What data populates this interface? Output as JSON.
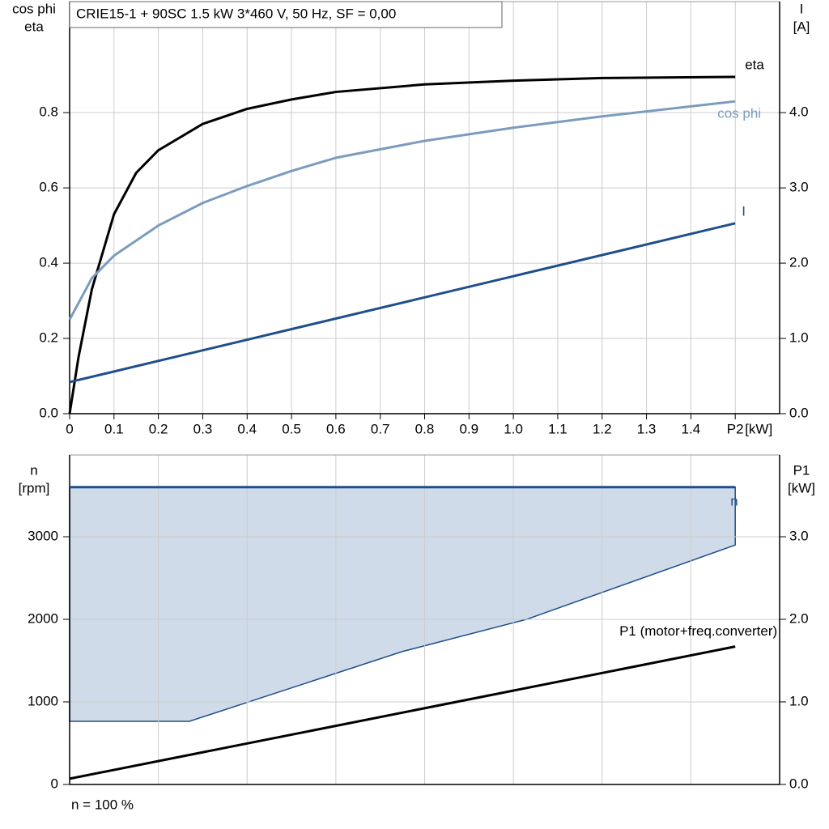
{
  "chart_data": [
    {
      "type": "line",
      "title": "CRIE15-1 + 90SC   1.5 kW   3*460 V, 50 Hz, SF = 0,00",
      "y_label": [
        "cos phi",
        "eta"
      ],
      "y2_label": [
        "I",
        "[A]"
      ],
      "x_label": "[kW]",
      "xlim": [
        0,
        1.6
      ],
      "xticks": [
        {
          "value": 0,
          "label": "0"
        },
        0.1,
        0.2,
        0.3,
        0.4,
        0.5,
        0.6,
        0.7,
        0.8,
        0.9,
        {
          "value": 1.0,
          "label": "1.0"
        },
        1.1,
        1.2,
        1.3,
        1.4,
        {
          "value": 1.5,
          "label": "P2"
        }
      ],
      "ylim": [
        0,
        1.095
      ],
      "yticks": [
        {
          "value": 0,
          "label": "0.0"
        },
        0.2,
        0.4,
        0.6,
        0.8
      ],
      "y2lim": [
        0,
        5.475
      ],
      "y2ticks": [
        {
          "value": 0,
          "label": "0.0"
        },
        {
          "value": 1,
          "label": "1.0"
        },
        {
          "value": 2,
          "label": "2.0"
        },
        {
          "value": 3,
          "label": "3.0"
        },
        {
          "value": 4,
          "label": "4.0"
        }
      ],
      "grid": true,
      "series": [
        {
          "name": "eta",
          "color": "#000000",
          "x": [
            0,
            0.02,
            0.05,
            0.1,
            0.15,
            0.2,
            0.3,
            0.4,
            0.5,
            0.6,
            0.8,
            1.0,
            1.2,
            1.5
          ],
          "values": [
            0,
            0.15,
            0.33,
            0.53,
            0.64,
            0.7,
            0.77,
            0.81,
            0.835,
            0.855,
            0.875,
            0.885,
            0.892,
            0.895
          ]
        },
        {
          "name": "cos phi",
          "color": "#7b9cbd",
          "x": [
            0,
            0.05,
            0.1,
            0.2,
            0.3,
            0.4,
            0.5,
            0.6,
            0.8,
            1.0,
            1.2,
            1.5
          ],
          "values": [
            0.25,
            0.36,
            0.42,
            0.5,
            0.56,
            0.605,
            0.645,
            0.68,
            0.725,
            0.76,
            0.79,
            0.83
          ]
        },
        {
          "name": "I",
          "color": "#1f4e8c",
          "axis": "y2",
          "x": [
            0,
            1.5
          ],
          "values": [
            0.42,
            2.53
          ]
        }
      ]
    },
    {
      "type": "line",
      "y_label": [
        "n",
        "[rpm]"
      ],
      "y2_label": [
        "P1",
        "[kW]"
      ],
      "note": "n = 100 %",
      "xlim": [
        0,
        1.6
      ],
      "xgrid": [
        0.2,
        0.4,
        0.6,
        0.8,
        1.0,
        1.2,
        1.4
      ],
      "ylim": [
        0,
        3990
      ],
      "yticks": [
        0,
        1000,
        2000,
        3000
      ],
      "y2lim": [
        0,
        3.99
      ],
      "y2ticks": [
        {
          "value": 0,
          "label": "0.0"
        },
        {
          "value": 1,
          "label": "1.0"
        },
        {
          "value": 2,
          "label": "2.0"
        },
        {
          "value": 3,
          "label": "3.0"
        }
      ],
      "grid": true,
      "band": {
        "color": "#cfdbe9",
        "edge": "#1f4e8c",
        "x": [
          0,
          0.27,
          0.75,
          1.03,
          1.5
        ],
        "lower": [
          765,
          765,
          1610,
          2000,
          2900
        ],
        "upper": [
          3600,
          3600,
          3600,
          3600,
          3600
        ]
      },
      "series": [
        {
          "name": "n",
          "color": "#1f4e8c",
          "x": [
            0,
            1.5
          ],
          "values": [
            3600,
            3600
          ]
        },
        {
          "name": "P1 (motor+freq.converter)",
          "color": "#000000",
          "axis": "y2",
          "x": [
            0,
            1.5
          ],
          "values": [
            0.07,
            1.67
          ]
        }
      ]
    }
  ]
}
